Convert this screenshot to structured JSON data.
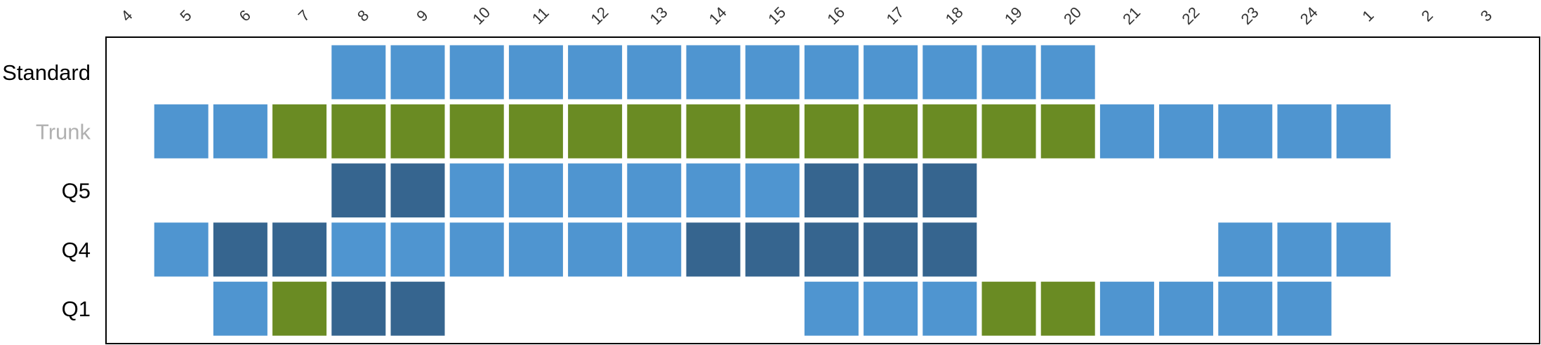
{
  "chart_data": {
    "type": "heatmap",
    "columns": [
      "4",
      "5",
      "6",
      "7",
      "8",
      "9",
      "10",
      "11",
      "12",
      "13",
      "14",
      "15",
      "16",
      "17",
      "18",
      "19",
      "20",
      "21",
      "22",
      "23",
      "24",
      "1",
      "2",
      "3"
    ],
    "rows": [
      {
        "label": "Standard",
        "label_color": "#000000",
        "cells": [
          "",
          "",
          "",
          "",
          "L",
          "L",
          "L",
          "L",
          "L",
          "L",
          "L",
          "L",
          "L",
          "L",
          "L",
          "L",
          "L",
          "",
          "",
          "",
          "",
          "",
          "",
          ""
        ]
      },
      {
        "label": "Trunk",
        "label_color": "#b0b0b0",
        "cells": [
          "",
          "L",
          "L",
          "G",
          "G",
          "G",
          "G",
          "G",
          "G",
          "G",
          "G",
          "G",
          "G",
          "G",
          "G",
          "G",
          "G",
          "L",
          "L",
          "L",
          "L",
          "L",
          "",
          ""
        ]
      },
      {
        "label": "Q5",
        "label_color": "#000000",
        "cells": [
          "",
          "",
          "",
          "",
          "D",
          "D",
          "L",
          "L",
          "L",
          "L",
          "L",
          "L",
          "D",
          "D",
          "D",
          "",
          "",
          "",
          "",
          "",
          "",
          "",
          "",
          ""
        ]
      },
      {
        "label": "Q4",
        "label_color": "#000000",
        "cells": [
          "",
          "L",
          "D",
          "D",
          "L",
          "L",
          "L",
          "L",
          "L",
          "L",
          "D",
          "D",
          "D",
          "D",
          "D",
          "",
          "",
          "",
          "",
          "L",
          "L",
          "L",
          "",
          ""
        ]
      },
      {
        "label": "Q1",
        "label_color": "#000000",
        "cells": [
          "",
          "",
          "L",
          "G",
          "D",
          "D",
          "",
          "",
          "",
          "",
          "",
          "",
          "L",
          "L",
          "L",
          "G",
          "G",
          "L",
          "L",
          "L",
          "L",
          "",
          "",
          ""
        ]
      }
    ],
    "colors": {
      "L": "#4f95d0",
      "D": "#36658f",
      "G": "#6a8b23"
    },
    "legend": "none",
    "grid": false
  }
}
